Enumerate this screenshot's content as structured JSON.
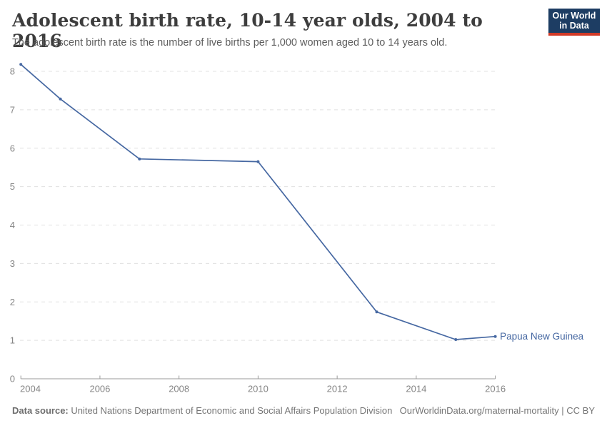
{
  "header": {
    "title": "Adolescent birth rate, 10-14 year olds, 2004 to 2016",
    "subtitle": "The adolescent birth rate is the number of live births per 1,000 women aged 10 to 14 years old.",
    "logo": {
      "line1": "Our World",
      "line2": "in Data"
    }
  },
  "chart_data": {
    "type": "line",
    "title": "Adolescent birth rate, 10-14 year olds, 2004 to 2016",
    "xlabel": "",
    "ylabel": "",
    "x": [
      2004,
      2005,
      2007,
      2010,
      2013,
      2015,
      2016
    ],
    "series": [
      {
        "name": "Papua New Guinea",
        "values": [
          8.18,
          7.28,
          5.72,
          5.65,
          1.74,
          1.02,
          1.1
        ]
      }
    ],
    "xlim": [
      2004,
      2016
    ],
    "ylim": [
      0,
      8
    ],
    "xticks": [
      2004,
      2006,
      2008,
      2010,
      2012,
      2014,
      2016
    ],
    "yticks": [
      0,
      1,
      2,
      3,
      4,
      5,
      6,
      7,
      8
    ],
    "grid": "dashed-horizontal-gridlines",
    "legend_position": "end-of-line-label"
  },
  "footer": {
    "source_label": "Data source:",
    "source_text": " United Nations Department of Economic and Social Affairs Population Division",
    "license_text": "OurWorldinData.org/maternal-mortality | CC BY"
  },
  "colors": {
    "line": "#4668a2",
    "grid": "#e0e0e0",
    "axis": "#9a9a9a",
    "tick_label": "#858585",
    "title": "#3d3d3d",
    "subtitle": "#5e5e5e",
    "logo_bg": "#1d3d63",
    "logo_red": "#d13a27"
  }
}
